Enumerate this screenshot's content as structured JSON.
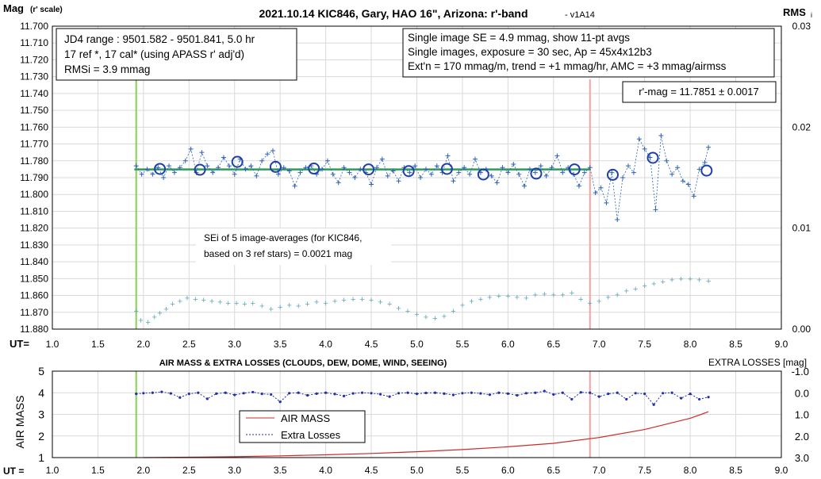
{
  "chart_data": [
    {
      "type": "scatter",
      "title": "2021.10.14 KIC846, Gary, HAO 16\", Arizona: r'-band",
      "version": "- v1A14",
      "ylabel": "Mag",
      "ylabel_suffix": "(r' scale)",
      "y2label": "RMS",
      "y2label_suffix": "i",
      "xlabel": "UT=",
      "xlim": [
        1.0,
        9.0
      ],
      "ylim": [
        11.7,
        11.88
      ],
      "y_reversed": true,
      "y2lim": [
        0.0,
        0.03
      ],
      "x_ticks": [
        "1.0",
        "1.5",
        "2.0",
        "2.5",
        "3.0",
        "3.5",
        "4.0",
        "4.5",
        "5.0",
        "5.5",
        "6.0",
        "6.5",
        "7.0",
        "7.5",
        "8.0",
        "8.5",
        "9.0"
      ],
      "y_ticks": [
        "11.700",
        "11.710",
        "11.720",
        "11.730",
        "11.740",
        "11.750",
        "11.760",
        "11.770",
        "11.780",
        "11.790",
        "11.800",
        "11.810",
        "11.820",
        "11.830",
        "11.840",
        "11.850",
        "11.860",
        "11.870",
        "11.880"
      ],
      "y2_ticks": [
        "0.03",
        "0.02",
        "0.01",
        "0.00"
      ],
      "grid": true,
      "vertical_lines": [
        {
          "x": 1.92,
          "color": "#8ccc58"
        },
        {
          "x": 6.9,
          "color": "#f4a3a3"
        }
      ],
      "fit_line": {
        "x": [
          1.9,
          6.9
        ],
        "y": [
          11.7851,
          11.7851
        ],
        "color": "#2e9c5a"
      },
      "info_box_left": [
        "JD4 range : 9501.582 - 9501.841,  5.0  hr",
        "17 ref *, 17 cal* (using APASS r' adj'd)",
        "RMSi = 3.9 mmag"
      ],
      "info_box_right": [
        "Single image SE = 4.9 mmag, show  11-pt avgs",
        "Single images, exposure = 30 sec, Ap = 45x4x12b3",
        "Ext'n = 170 mmag/m, trend = +1  mmag/hr, AMC = +3 mmag/airmss"
      ],
      "result_box": "r'-mag = 11.7851 ± 0.0017",
      "annotation": [
        "SEi of 5 image-averages (for KIC846,",
        "based on 3 ref stars) = 0.0021 mag"
      ],
      "series": [
        {
          "kind": "avg_circles",
          "color": "#1f3fa8",
          "x": [
            2.18,
            2.62,
            3.03,
            3.45,
            3.87,
            4.47,
            4.91,
            5.33,
            5.73,
            6.31,
            6.73,
            7.15,
            7.59,
            8.18
          ],
          "y": [
            11.7848,
            11.7853,
            11.7806,
            11.7836,
            11.7846,
            11.7851,
            11.7861,
            11.7848,
            11.7881,
            11.7876,
            11.7851,
            11.7883,
            11.7782,
            11.7858
          ]
        },
        {
          "kind": "single_images",
          "color": "#2f63b5",
          "x": [
            1.92,
            1.98,
            2.04,
            2.1,
            2.16,
            2.22,
            2.28,
            2.34,
            2.4,
            2.46,
            2.52,
            2.58,
            2.64,
            2.7,
            2.76,
            2.82,
            2.88,
            2.94,
            3.0,
            3.06,
            3.12,
            3.18,
            3.24,
            3.3,
            3.36,
            3.42,
            3.48,
            3.54,
            3.6,
            3.66,
            3.72,
            3.78,
            3.84,
            3.9,
            3.96,
            4.02,
            4.08,
            4.14,
            4.2,
            4.26,
            4.32,
            4.38,
            4.44,
            4.5,
            4.56,
            4.62,
            4.68,
            4.74,
            4.8,
            4.86,
            4.92,
            4.98,
            5.04,
            5.1,
            5.16,
            5.22,
            5.28,
            5.34,
            5.4,
            5.46,
            5.52,
            5.58,
            5.64,
            5.7,
            5.76,
            5.82,
            5.88,
            5.94,
            6.0,
            6.06,
            6.12,
            6.18,
            6.24,
            6.3,
            6.36,
            6.42,
            6.48,
            6.54,
            6.6,
            6.66,
            6.72,
            6.78,
            6.84,
            6.9,
            6.96,
            7.02,
            7.08,
            7.14,
            7.2,
            7.26,
            7.32,
            7.38,
            7.44,
            7.5,
            7.56,
            7.62,
            7.68,
            7.74,
            7.8,
            7.86,
            7.92,
            7.98,
            8.04,
            8.1,
            8.16,
            8.2
          ],
          "y": [
            11.783,
            11.788,
            11.785,
            11.788,
            11.784,
            11.79,
            11.783,
            11.787,
            11.784,
            11.78,
            11.773,
            11.787,
            11.775,
            11.783,
            11.787,
            11.784,
            11.778,
            11.783,
            11.788,
            11.779,
            11.785,
            11.783,
            11.789,
            11.78,
            11.776,
            11.774,
            11.788,
            11.784,
            11.786,
            11.795,
            11.787,
            11.784,
            11.783,
            11.788,
            11.785,
            11.78,
            11.788,
            11.793,
            11.784,
            11.787,
            11.79,
            11.785,
            11.787,
            11.794,
            11.784,
            11.779,
            11.789,
            11.786,
            11.792,
            11.784,
            11.787,
            11.783,
            11.79,
            11.785,
            11.788,
            11.783,
            11.787,
            11.777,
            11.792,
            11.787,
            11.784,
            11.788,
            11.779,
            11.787,
            11.785,
            11.789,
            11.793,
            11.784,
            11.787,
            11.782,
            11.788,
            11.795,
            11.785,
            11.787,
            11.783,
            11.789,
            11.784,
            11.777,
            11.787,
            11.784,
            11.788,
            11.795,
            11.787,
            11.784,
            11.799,
            11.796,
            11.805,
            11.787,
            11.815,
            11.79,
            11.783,
            11.787,
            11.767,
            11.773,
            11.778,
            11.809,
            11.765,
            11.78,
            11.788,
            11.784,
            11.792,
            11.794,
            11.801,
            11.785,
            11.781,
            11.772
          ]
        },
        {
          "kind": "rms",
          "axis": "y2",
          "color": "#59a8b8",
          "x": [
            1.92,
            1.97,
            2.05,
            2.12,
            2.18,
            2.25,
            2.32,
            2.4,
            2.48,
            2.57,
            2.66,
            2.75,
            2.84,
            2.93,
            3.02,
            3.11,
            3.2,
            3.3,
            3.4,
            3.5,
            3.6,
            3.7,
            3.8,
            3.9,
            4.0,
            4.1,
            4.2,
            4.3,
            4.4,
            4.5,
            4.6,
            4.7,
            4.8,
            4.9,
            5.0,
            5.1,
            5.2,
            5.3,
            5.4,
            5.5,
            5.6,
            5.7,
            5.8,
            5.9,
            6.0,
            6.1,
            6.2,
            6.3,
            6.4,
            6.5,
            6.6,
            6.7,
            6.8,
            6.9,
            7.0,
            7.1,
            7.2,
            7.3,
            7.4,
            7.5,
            7.6,
            7.7,
            7.8,
            7.9,
            8.0,
            8.1,
            8.2
          ],
          "y": [
            0.0018,
            0.0009,
            0.0007,
            0.0012,
            0.0016,
            0.002,
            0.0025,
            0.0028,
            0.0031,
            0.003,
            0.0029,
            0.0028,
            0.0027,
            0.0026,
            0.0026,
            0.0025,
            0.0026,
            0.0023,
            0.002,
            0.0022,
            0.0024,
            0.0023,
            0.0025,
            0.0027,
            0.0026,
            0.0028,
            0.0029,
            0.003,
            0.003,
            0.0029,
            0.0027,
            0.0025,
            0.0021,
            0.0018,
            0.0015,
            0.0012,
            0.0011,
            0.0013,
            0.0018,
            0.0024,
            0.0028,
            0.003,
            0.0032,
            0.0033,
            0.0033,
            0.0032,
            0.0031,
            0.0034,
            0.0035,
            0.0034,
            0.0034,
            0.0036,
            0.003,
            0.0026,
            0.0028,
            0.0032,
            0.0034,
            0.0038,
            0.004,
            0.0043,
            0.0045,
            0.0047,
            0.0049,
            0.005,
            0.005,
            0.0049,
            0.0048
          ]
        }
      ]
    },
    {
      "type": "line",
      "title": "AIR MASS & EXTRA LOSSES (CLOUDS, DEW, DOME, WIND, SEEING)",
      "ylabel": "AIR MASS",
      "y2label": "EXTRA LOSSES [mag]",
      "xlabel": "UT =",
      "xlim": [
        1.0,
        9.0
      ],
      "ylim": [
        1,
        5
      ],
      "y2lim": [
        -1.0,
        3.0
      ],
      "y2_reversed": true,
      "x_ticks": [
        "1.0",
        "1.5",
        "2.0",
        "2.5",
        "3.0",
        "3.5",
        "4.0",
        "4.5",
        "5.0",
        "5.5",
        "6.0",
        "6.5",
        "7.0",
        "7.5",
        "8.0",
        "8.5",
        "9.0"
      ],
      "y_ticks": [
        "1",
        "2",
        "3",
        "4",
        "5"
      ],
      "y2_ticks": [
        "-1.0",
        "0.0",
        "1.0",
        "2.0",
        "3.0"
      ],
      "grid": true,
      "vertical_lines": [
        {
          "x": 1.92,
          "color": "#8ccc58"
        },
        {
          "x": 6.9,
          "color": "#f4a3a3"
        }
      ],
      "legend": {
        "position": "center-left",
        "entries": [
          "AIR MASS",
          "Extra Losses"
        ]
      },
      "series": [
        {
          "name": "AIR MASS",
          "axis": "y",
          "color": "#cc2a2a",
          "x": [
            2.0,
            2.5,
            3.0,
            3.5,
            4.0,
            4.5,
            5.0,
            5.5,
            6.0,
            6.5,
            7.0,
            7.5,
            8.0,
            8.2
          ],
          "y": [
            1.0,
            1.02,
            1.04,
            1.08,
            1.13,
            1.19,
            1.27,
            1.37,
            1.5,
            1.66,
            1.93,
            2.3,
            2.82,
            3.12
          ]
        },
        {
          "name": "Extra Losses",
          "axis": "y2",
          "color": "#1f2fa8",
          "x": [
            1.92,
            2.0,
            2.1,
            2.2,
            2.3,
            2.4,
            2.5,
            2.6,
            2.7,
            2.8,
            2.9,
            3.0,
            3.1,
            3.2,
            3.3,
            3.4,
            3.5,
            3.6,
            3.7,
            3.8,
            3.9,
            4.0,
            4.1,
            4.2,
            4.3,
            4.4,
            4.5,
            4.6,
            4.7,
            4.8,
            4.9,
            5.0,
            5.1,
            5.2,
            5.3,
            5.4,
            5.5,
            5.6,
            5.7,
            5.8,
            5.9,
            6.0,
            6.1,
            6.2,
            6.3,
            6.4,
            6.5,
            6.6,
            6.7,
            6.8,
            6.9,
            7.0,
            7.1,
            7.2,
            7.3,
            7.4,
            7.5,
            7.6,
            7.7,
            7.8,
            7.9,
            8.0,
            8.1,
            8.2
          ],
          "y": [
            0.05,
            0.02,
            0.0,
            -0.04,
            0.03,
            0.22,
            0.05,
            0.0,
            0.28,
            0.04,
            0.0,
            0.1,
            0.02,
            -0.03,
            0.05,
            0.08,
            0.42,
            0.02,
            0.0,
            0.12,
            0.04,
            0.0,
            0.06,
            0.15,
            0.03,
            0.0,
            0.02,
            0.07,
            0.18,
            0.02,
            0.0,
            0.05,
            0.01,
            0.0,
            0.04,
            0.1,
            0.02,
            0.0,
            0.03,
            0.09,
            0.0,
            0.04,
            0.12,
            0.02,
            0.0,
            -0.08,
            0.08,
            0.0,
            0.3,
            -0.02,
            0.0,
            0.18,
            0.05,
            0.0,
            0.3,
            0.02,
            0.05,
            0.55,
            0.02,
            0.0,
            0.25,
            0.05,
            0.3,
            0.2
          ]
        }
      ]
    }
  ]
}
